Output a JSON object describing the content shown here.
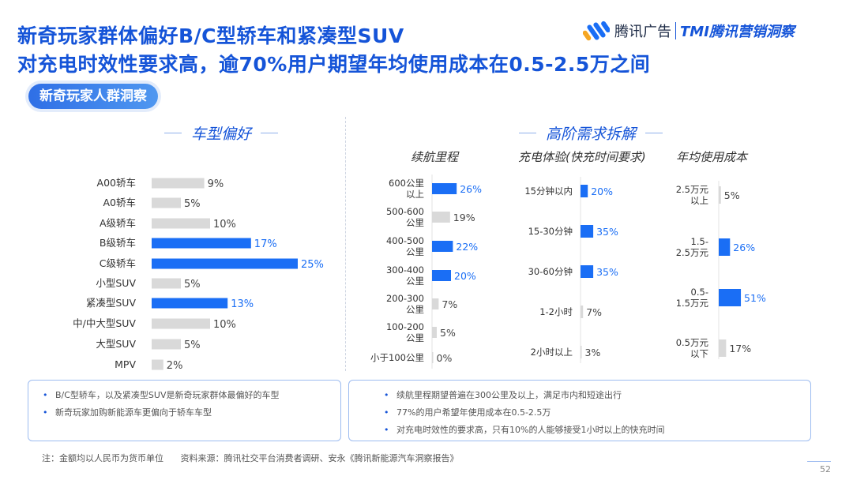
{
  "title_line1": "新奇玩家群体偏好B/C型轿车和紧凑型SUV",
  "title_line2": "对充电时效性要求高，逾70%用户期望年均使用成本在0.5-2.5万之间",
  "logo": {
    "brand": "腾讯广告",
    "tmi": "TMI腾讯营销洞察"
  },
  "badge": "新奇玩家人群洞察",
  "left_section_title": "车型偏好",
  "right_section_title": "高阶需求拆解",
  "subtitles": [
    "续航里程",
    "充电体验(快充时间要求)",
    "年均使用成本"
  ],
  "colors": {
    "accent": "#1a6ef5",
    "bar_gray": "#d9d9d9",
    "title": "#1554d8"
  },
  "chart_data": [
    {
      "type": "bar",
      "orientation": "horizontal",
      "title": "车型偏好",
      "categories": [
        "A00轿车",
        "A0轿车",
        "A级轿车",
        "B级轿车",
        "C级轿车",
        "小型SUV",
        "紧凑型SUV",
        "中/中大型SUV",
        "大型SUV",
        "MPV"
      ],
      "values": [
        9,
        5,
        10,
        17,
        25,
        5,
        13,
        10,
        5,
        2
      ],
      "labels": [
        "9%",
        "5%",
        "10%",
        "17%",
        "25%",
        "5%",
        "13%",
        "10%",
        "5%",
        "2%"
      ],
      "highlight": [
        false,
        false,
        false,
        true,
        true,
        false,
        true,
        false,
        false,
        false
      ],
      "unit": "%"
    },
    {
      "type": "bar",
      "orientation": "horizontal",
      "title": "续航里程",
      "categories": [
        [
          "600公里",
          "以上"
        ],
        [
          "500-600",
          "公里"
        ],
        [
          "400-500",
          "公里"
        ],
        [
          "300-400",
          "公里"
        ],
        [
          "200-300",
          "公里"
        ],
        [
          "100-200",
          "公里"
        ],
        [
          "小于100公里"
        ]
      ],
      "values": [
        26,
        19,
        22,
        20,
        7,
        5,
        0
      ],
      "labels": [
        "26%",
        "19%",
        "22%",
        "20%",
        "7%",
        "5%",
        "0%"
      ],
      "highlight": [
        true,
        false,
        true,
        true,
        false,
        false,
        false
      ],
      "unit": "%"
    },
    {
      "type": "bar",
      "orientation": "horizontal",
      "title": "充电体验(快充时间要求)",
      "categories": [
        [
          "15分钟以内"
        ],
        [
          "15-30分钟"
        ],
        [
          "30-60分钟"
        ],
        [
          "1-2小时"
        ],
        [
          "2小时以上"
        ]
      ],
      "values": [
        20,
        35,
        35,
        7,
        3
      ],
      "labels": [
        "20%",
        "35%",
        "35%",
        "7%",
        "3%"
      ],
      "highlight": [
        true,
        true,
        true,
        false,
        false
      ],
      "unit": "%"
    },
    {
      "type": "bar",
      "orientation": "horizontal",
      "title": "年均使用成本",
      "categories": [
        [
          "2.5万元",
          "以上"
        ],
        [
          "1.5-",
          "2.5万元"
        ],
        [
          "0.5-",
          "1.5万元"
        ],
        [
          "0.5万元",
          "以下"
        ]
      ],
      "values": [
        5,
        26,
        51,
        17
      ],
      "labels": [
        "5%",
        "26%",
        "51%",
        "17%"
      ],
      "highlight": [
        false,
        true,
        true,
        false
      ],
      "unit": "%"
    }
  ],
  "notes_left": [
    "B/C型轿车，以及紧凑型SUV是新奇玩家群体最偏好的车型",
    "新奇玩家加购新能源车更偏向于轿车车型"
  ],
  "notes_right": [
    "续航里程期望普遍在300公里及以上，满足市内和短途出行",
    "77%的用户希望年使用成本在0.5-2.5万",
    "对充电时效性的要求高，只有10%的人能够接受1小时以上的快充时间"
  ],
  "footer": {
    "note": "注：金额均以人民币为货币单位",
    "source": "资料来源：腾讯社交平台消费者调研、安永《腾讯新能源汽车洞察报告》"
  },
  "page_number": "52"
}
